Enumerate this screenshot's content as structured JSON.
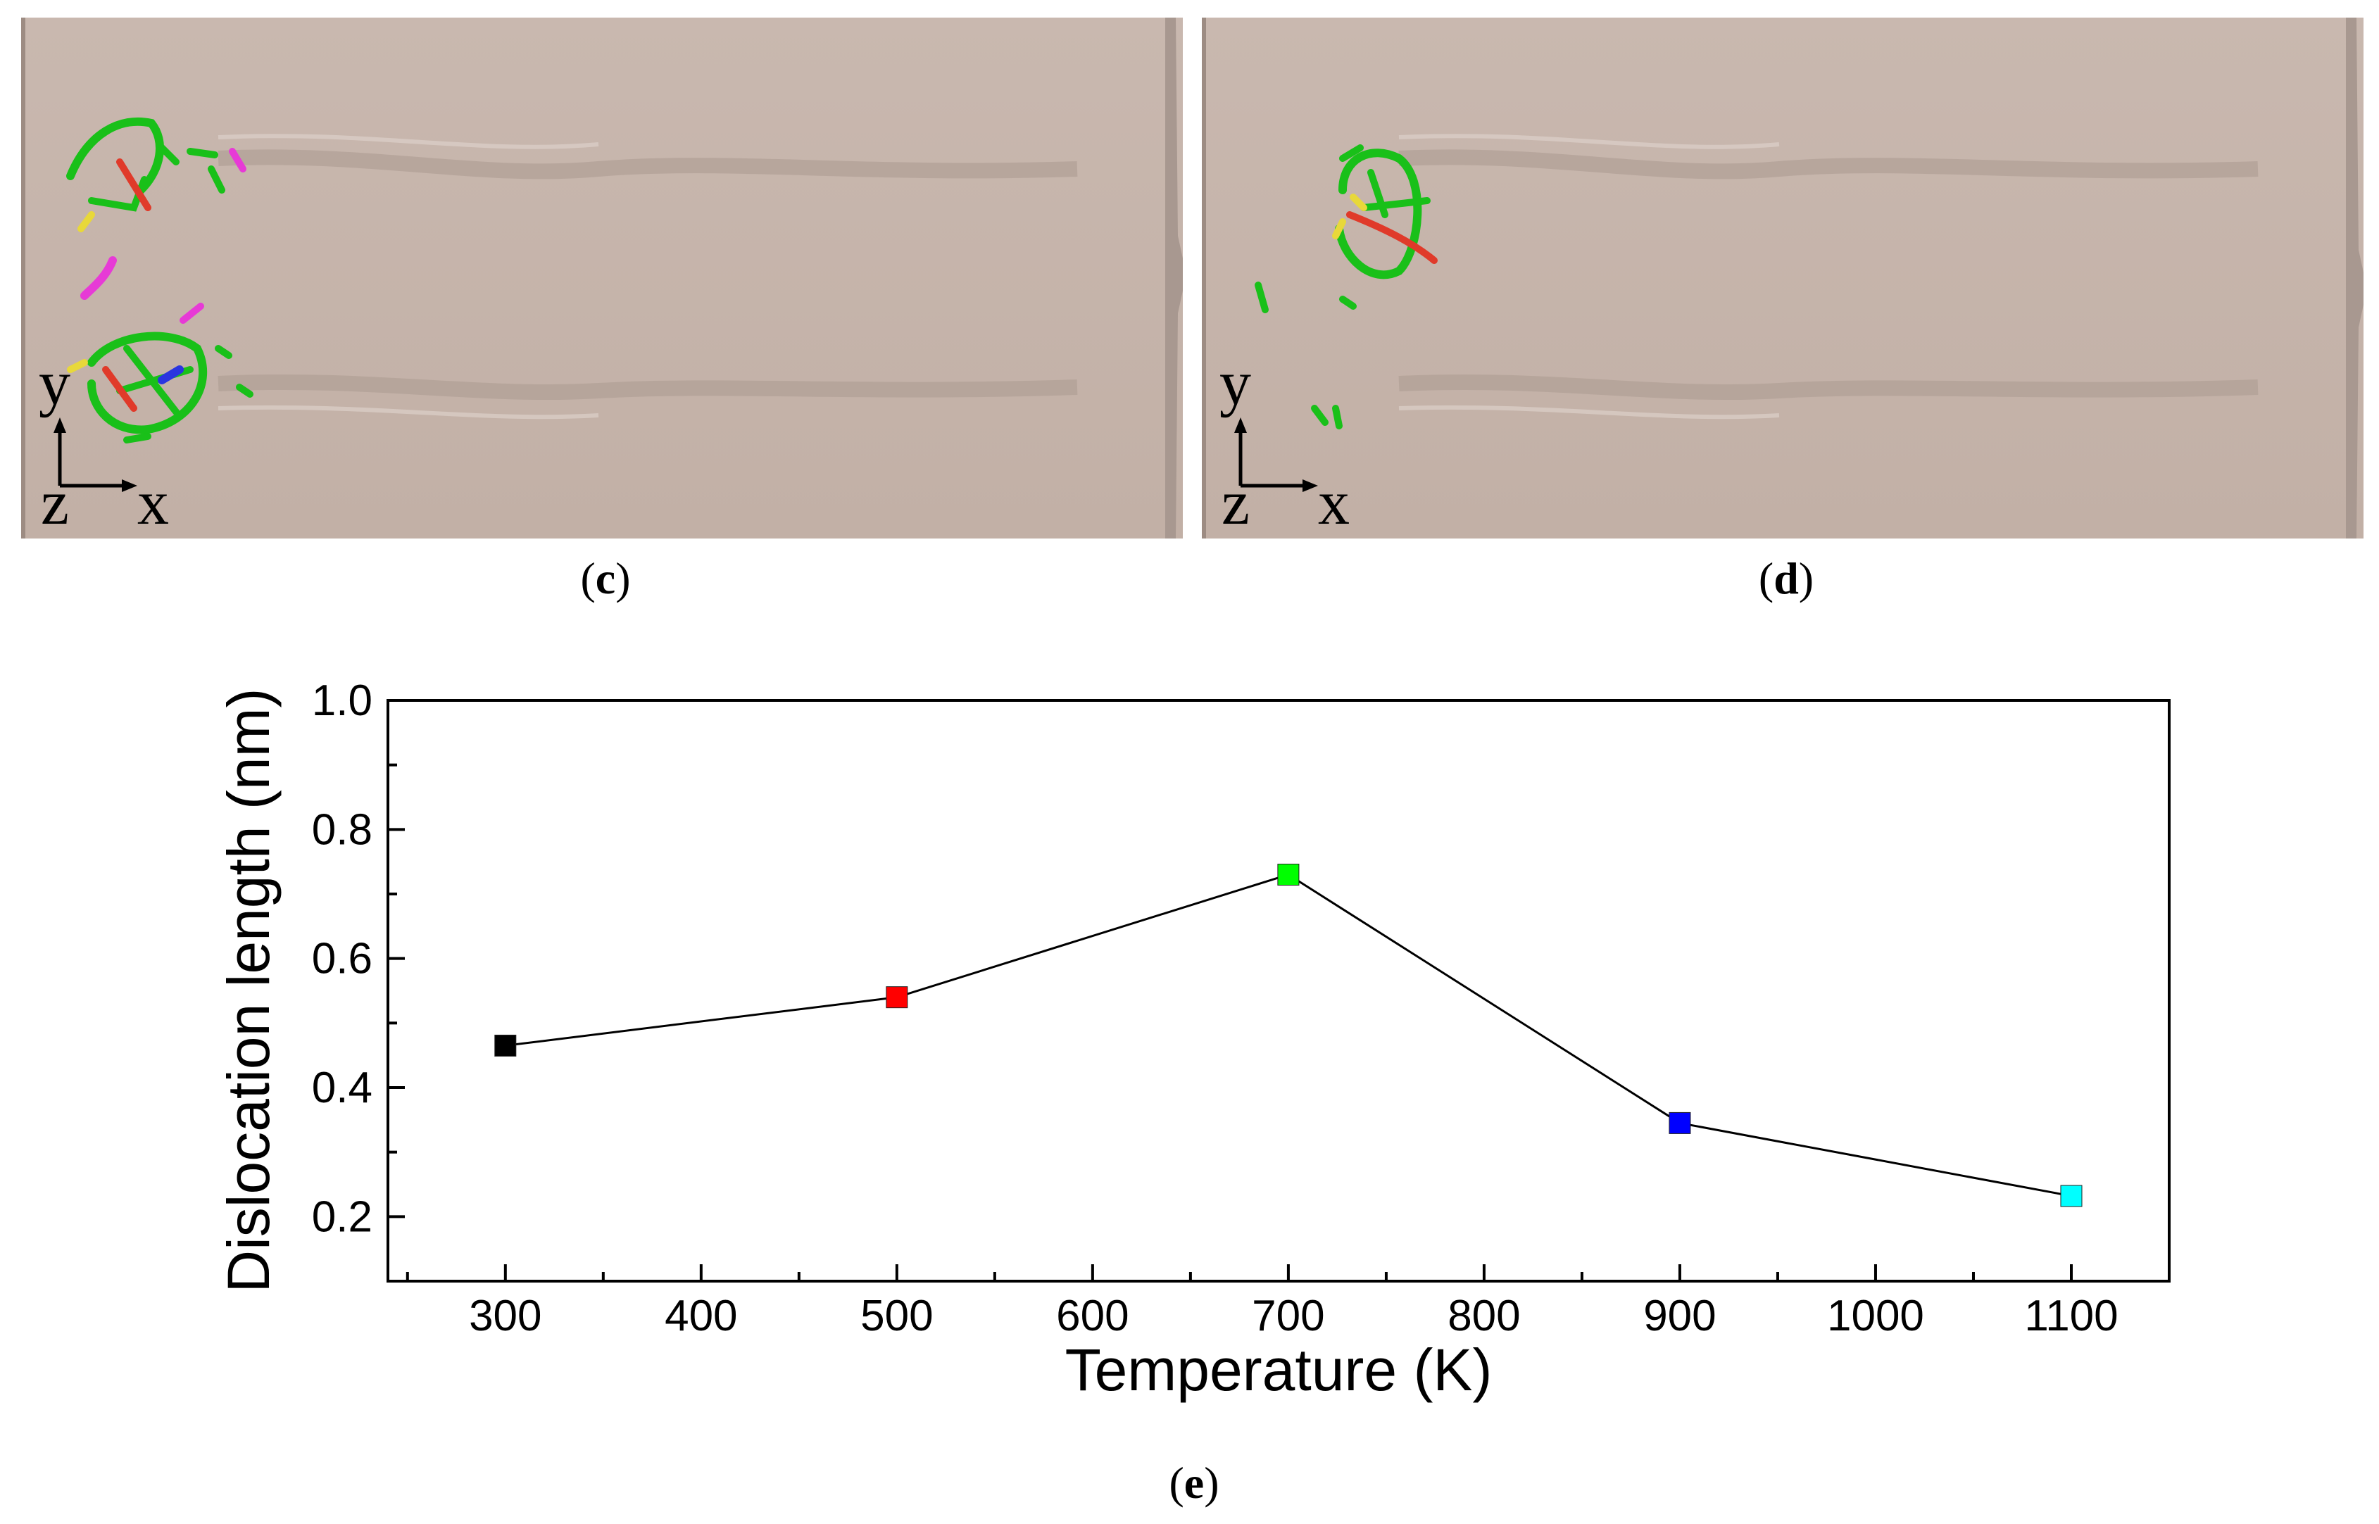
{
  "panels": [
    {
      "caption_open": "(",
      "caption_letter": "c",
      "caption_close": ")",
      "axis_y": "y",
      "axis_z": "z",
      "axis_x": "x"
    },
    {
      "caption_open": "(",
      "caption_letter": "d",
      "caption_close": ")",
      "axis_y": "y",
      "axis_z": "z",
      "axis_x": "x"
    }
  ],
  "chart_caption": {
    "open": "(",
    "letter": "e",
    "close": ")"
  },
  "colors": {
    "specimen": "#c7b5ac",
    "dislocation_green": "#19c019",
    "dislocation_red": "#e03a2a",
    "dislocation_magenta": "#e73ad6",
    "dislocation_yellow": "#e8d83a"
  },
  "chart_data": {
    "type": "line",
    "x": [
      300,
      500,
      700,
      900,
      1100
    ],
    "values": [
      0.465,
      0.54,
      0.73,
      0.345,
      0.232
    ],
    "marker_colors": [
      "#000000",
      "#ff0000",
      "#00ff00",
      "#0000ff",
      "#00ffff"
    ],
    "xlabel": "Temperature (K)",
    "ylabel": "Dislocation length (nm)",
    "xlim": [
      240,
      1150
    ],
    "ylim": [
      0.1,
      1.0
    ],
    "xticks": [
      "300",
      "400",
      "500",
      "600",
      "700",
      "800",
      "900",
      "1000",
      "1100"
    ],
    "yticks": [
      "0.2",
      "0.4",
      "0.6",
      "0.8",
      "1.0"
    ],
    "grid": false,
    "legend": "none"
  }
}
